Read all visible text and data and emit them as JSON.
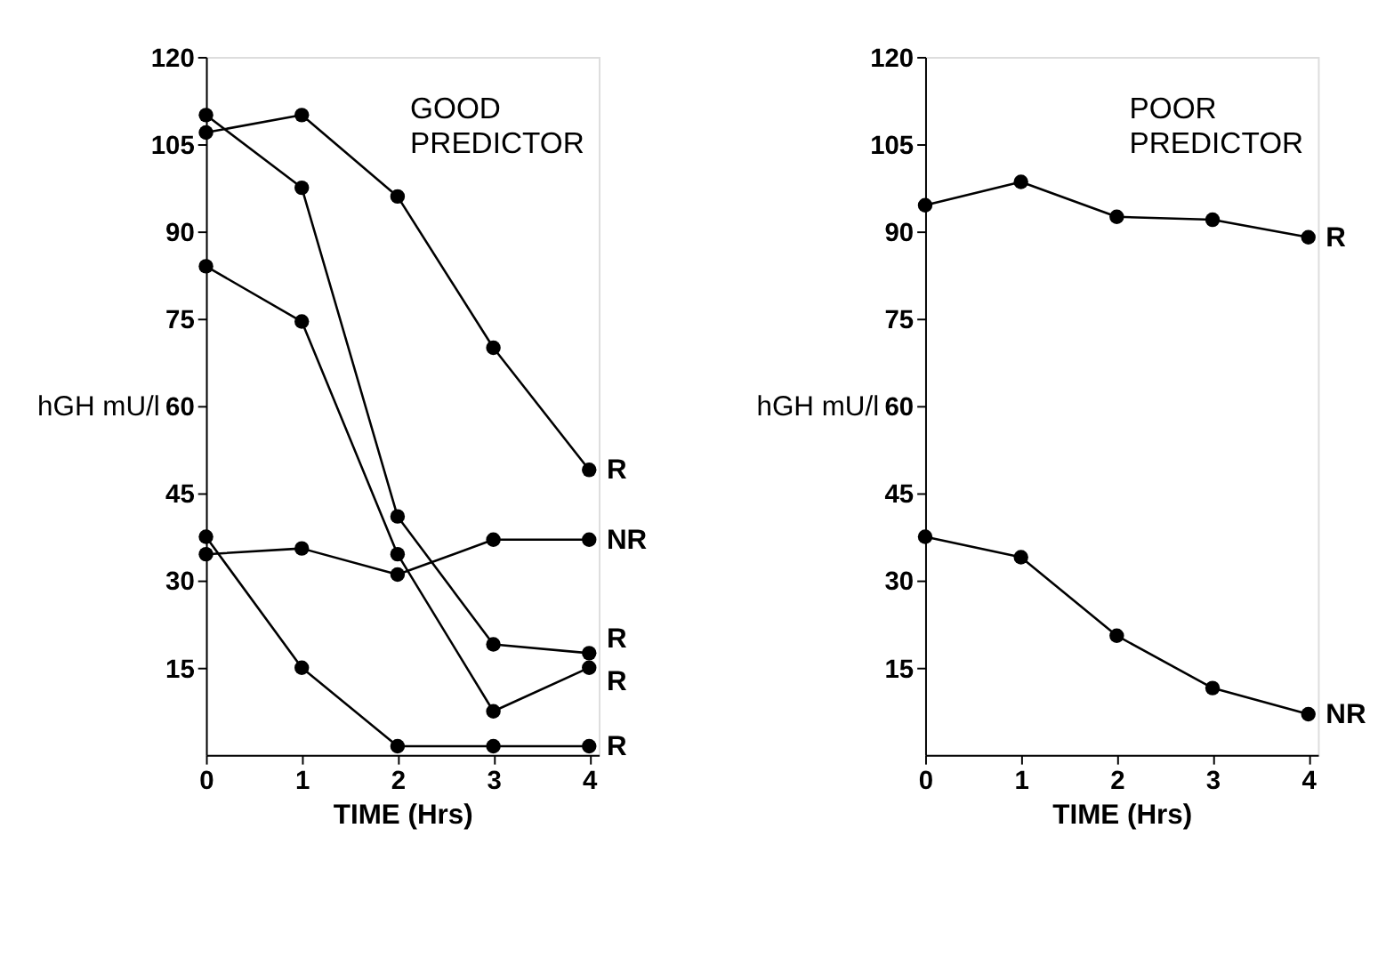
{
  "chart_data": [
    {
      "type": "line",
      "title": "GOOD PREDICTOR",
      "xlabel": "TIME (Hrs)",
      "ylabel": "hGH mU/l",
      "x": [
        0,
        1,
        2,
        3,
        4
      ],
      "xlim": [
        0,
        4.1
      ],
      "xticks": [
        0,
        1,
        2,
        3,
        4
      ],
      "ylim": [
        0,
        120
      ],
      "yticks": [
        15,
        30,
        45,
        60,
        75,
        90,
        105,
        120
      ],
      "grid": false,
      "marker": "circle",
      "line_style": "solid",
      "series": [
        {
          "name": "R",
          "color": "#000000",
          "values": [
            107,
            110,
            96,
            70,
            49
          ]
        },
        {
          "name": "R",
          "color": "#000000",
          "values": [
            110,
            97.5,
            41,
            19,
            17.5
          ]
        },
        {
          "name": "R",
          "color": "#000000",
          "values": [
            84,
            74.5,
            34.5,
            7.5,
            15
          ]
        },
        {
          "name": "NR",
          "color": "#000000",
          "values": [
            34.5,
            35.5,
            31,
            37,
            37
          ]
        },
        {
          "name": "R",
          "color": "#000000",
          "values": [
            37.5,
            15,
            1.5,
            1.5,
            1.5
          ]
        }
      ]
    },
    {
      "type": "line",
      "title": "POOR PREDICTOR",
      "xlabel": "TIME (Hrs)",
      "ylabel": "hGH mU/l",
      "x": [
        0,
        1,
        2,
        3,
        4
      ],
      "xlim": [
        0,
        4.1
      ],
      "xticks": [
        0,
        1,
        2,
        3,
        4
      ],
      "ylim": [
        0,
        120
      ],
      "yticks": [
        15,
        30,
        45,
        60,
        75,
        90,
        105,
        120
      ],
      "grid": false,
      "marker": "circle",
      "line_style": "solid",
      "series": [
        {
          "name": "R",
          "color": "#000000",
          "values": [
            94.5,
            98.5,
            92.5,
            92,
            89
          ]
        },
        {
          "name": "NR",
          "color": "#000000",
          "values": [
            37.5,
            34,
            20.5,
            11.5,
            7
          ]
        }
      ]
    }
  ]
}
